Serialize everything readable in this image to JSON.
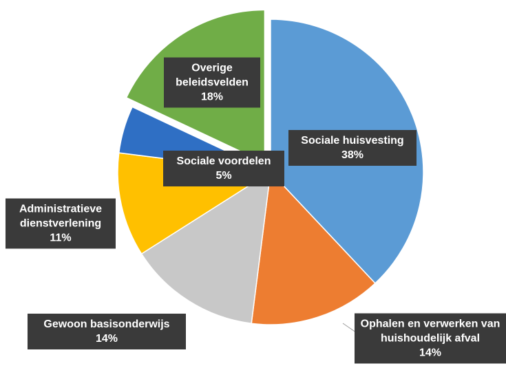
{
  "chart_data": {
    "type": "pie",
    "categories": [
      "Sociale huisvesting",
      "Ophalen en verwerken van huishoudelijk afval",
      "Gewoon basisonderwijs",
      "Administratieve dienstverlening",
      "Sociale voordelen",
      "Overige beleidsvelden"
    ],
    "values": [
      38,
      14,
      14,
      11,
      5,
      18
    ],
    "value_labels": [
      "38%",
      "14%",
      "14%",
      "11%",
      "5%",
      "18%"
    ],
    "colors": [
      "#5b9bd5",
      "#ed7d31",
      "#c8c8c8",
      "#ffc000",
      "#2f6fc4",
      "#70ad47"
    ],
    "exploded": [
      false,
      false,
      false,
      false,
      false,
      true
    ]
  }
}
